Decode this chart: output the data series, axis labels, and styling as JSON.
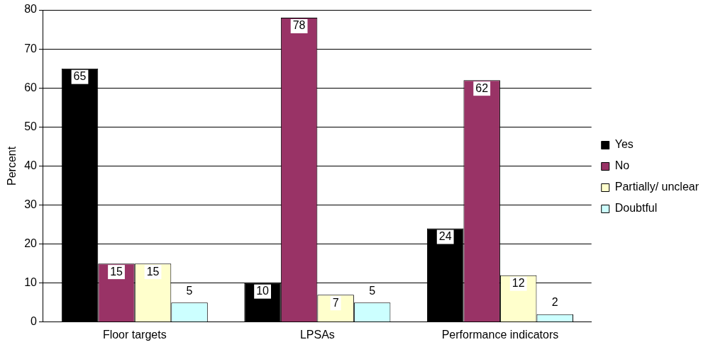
{
  "chart_data": {
    "type": "bar",
    "ylabel": "Percent",
    "categories": [
      "Floor targets",
      "LPSAs",
      "Performance indicators"
    ],
    "series": [
      {
        "name": "Yes",
        "color": "#000000",
        "values": [
          65,
          10,
          24
        ]
      },
      {
        "name": "No",
        "color": "#993366",
        "values": [
          15,
          78,
          62
        ]
      },
      {
        "name": "Partially/ unclear",
        "color": "#ffffcc",
        "values": [
          15,
          7,
          12
        ]
      },
      {
        "name": "Doubtful",
        "color": "#ccffff",
        "values": [
          5,
          5,
          2
        ]
      }
    ],
    "ylim": [
      0,
      80
    ],
    "yticks": [
      0,
      10,
      20,
      30,
      40,
      50,
      60,
      70,
      80
    ],
    "grid": "y",
    "legend": "right",
    "data_labels": true
  }
}
